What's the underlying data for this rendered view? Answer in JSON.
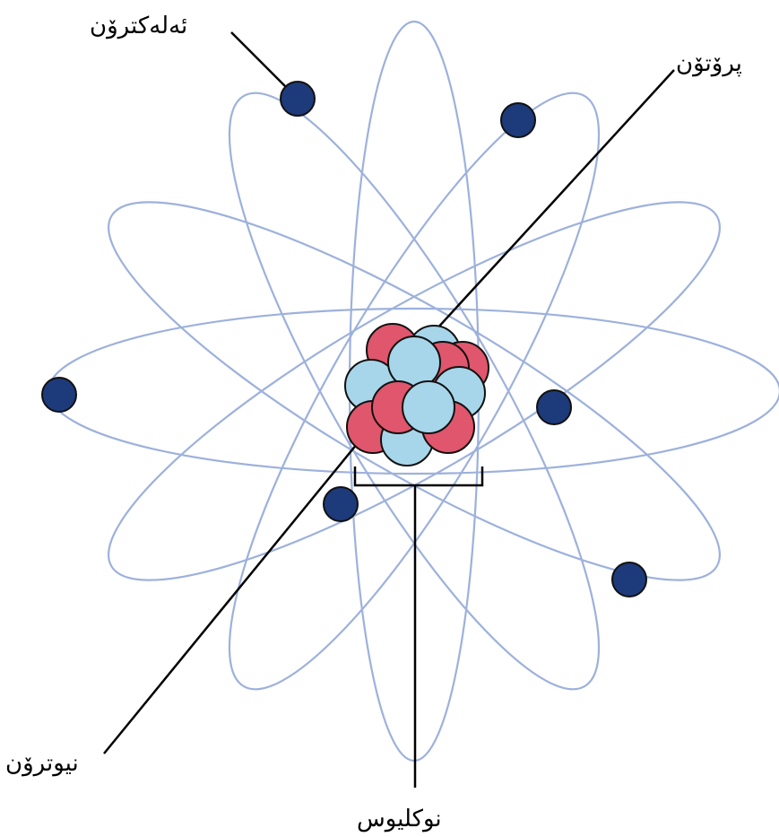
{
  "labels": {
    "electron": "ئەلەکترۆن",
    "proton": "پرۆتۆن",
    "neutron": "نیوترۆن",
    "nucleus": "نوکلیوس"
  },
  "colors": {
    "orbit": "#9db1dc",
    "electron": "#1d3a7a",
    "proton": "#e0566c",
    "neutron": "#a7d6ea",
    "outline": "#111111",
    "leader_line": "#000000"
  }
}
